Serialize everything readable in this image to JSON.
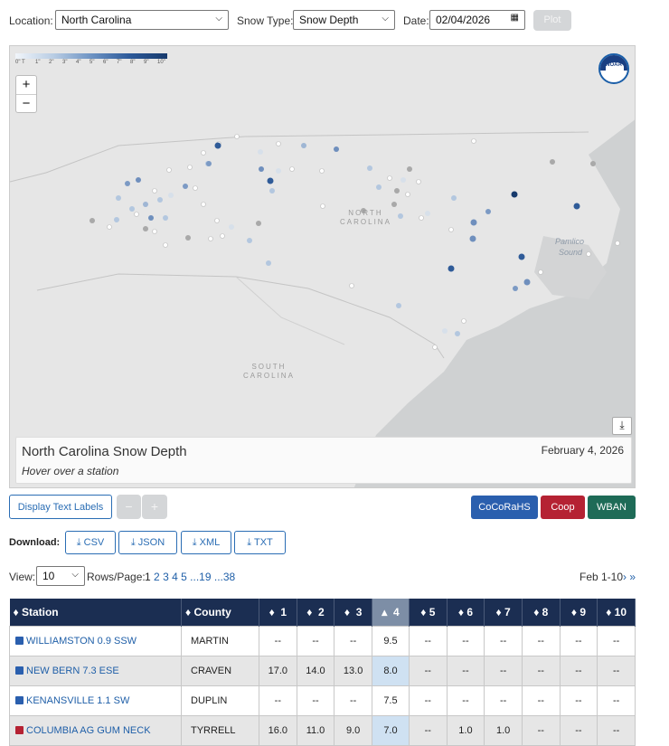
{
  "controls": {
    "location_label": "Location:",
    "location_value": "North Carolina",
    "snowtype_label": "Snow Type:",
    "snowtype_value": "Snow Depth",
    "date_label": "Date:",
    "date_value": "02/04/2026",
    "plot_label": "Plot"
  },
  "map": {
    "legend_ticks": [
      "0\"",
      "T",
      "1\"",
      "2\"",
      "3\"",
      "4\"",
      "5\"",
      "6\"",
      "7\"",
      "8\"",
      "9\"",
      "10\""
    ],
    "legend_colors": [
      "#f1f5fa",
      "#173a6c"
    ],
    "zoom_in": "+",
    "zoom_out": "−",
    "logo_text": "NOAA",
    "labels": {
      "nc": [
        "NORTH",
        "CAROLINA"
      ],
      "sc": [
        "SOUTH",
        "CAROLINA"
      ],
      "sound": [
        "Pamlico",
        "Sound"
      ]
    },
    "info_title": "North Carolina Snow Depth",
    "info_subtitle": "Hover over a station",
    "info_date": "February 4, 2026"
  },
  "buttons": {
    "text_labels": "Display Text Labels",
    "minus": "−",
    "plus": "+",
    "networks": [
      {
        "label": "CoCoRaHS",
        "color": "#2a5fae"
      },
      {
        "label": "Coop",
        "color": "#b52233"
      },
      {
        "label": "WBAN",
        "color": "#1e6b57"
      }
    ]
  },
  "download": {
    "label": "Download:",
    "formats": [
      "CSV",
      "JSON",
      "XML",
      "TXT"
    ]
  },
  "pagination": {
    "view_label": "View:",
    "view_value": "10",
    "rows_label": "Rows/Page:",
    "current_page": "1",
    "pages": [
      "2",
      "3",
      "4",
      "5",
      "...19",
      "...38"
    ],
    "range_label": "Feb 1-10",
    "next": "› »"
  },
  "table": {
    "headers": {
      "station": "Station",
      "county": "County",
      "days": [
        "1",
        "2",
        "3",
        "4",
        "5",
        "6",
        "7",
        "8",
        "9",
        "10"
      ]
    },
    "rows": [
      {
        "station": "WILLIAMSTON 0.9 SSW",
        "network_color": "#2a5fae",
        "county": "MARTIN",
        "values": [
          "--",
          "--",
          "--",
          "9.5",
          "--",
          "--",
          "--",
          "--",
          "--",
          "--"
        ]
      },
      {
        "station": "NEW BERN 7.3 ESE",
        "network_color": "#2a5fae",
        "county": "CRAVEN",
        "values": [
          "17.0",
          "14.0",
          "13.0",
          "8.0",
          "--",
          "--",
          "--",
          "--",
          "--",
          "--"
        ]
      },
      {
        "station": "KENANSVILLE 1.1 SW",
        "network_color": "#2a5fae",
        "county": "DUPLIN",
        "values": [
          "--",
          "--",
          "--",
          "7.5",
          "--",
          "--",
          "--",
          "--",
          "--",
          "--"
        ]
      },
      {
        "station": "COLUMBIA AG GUM NECK",
        "network_color": "#b52233",
        "county": "TYRRELL",
        "values": [
          "16.0",
          "11.0",
          "9.0",
          "7.0",
          "--",
          "1.0",
          "1.0",
          "--",
          "--",
          "--"
        ]
      }
    ]
  }
}
